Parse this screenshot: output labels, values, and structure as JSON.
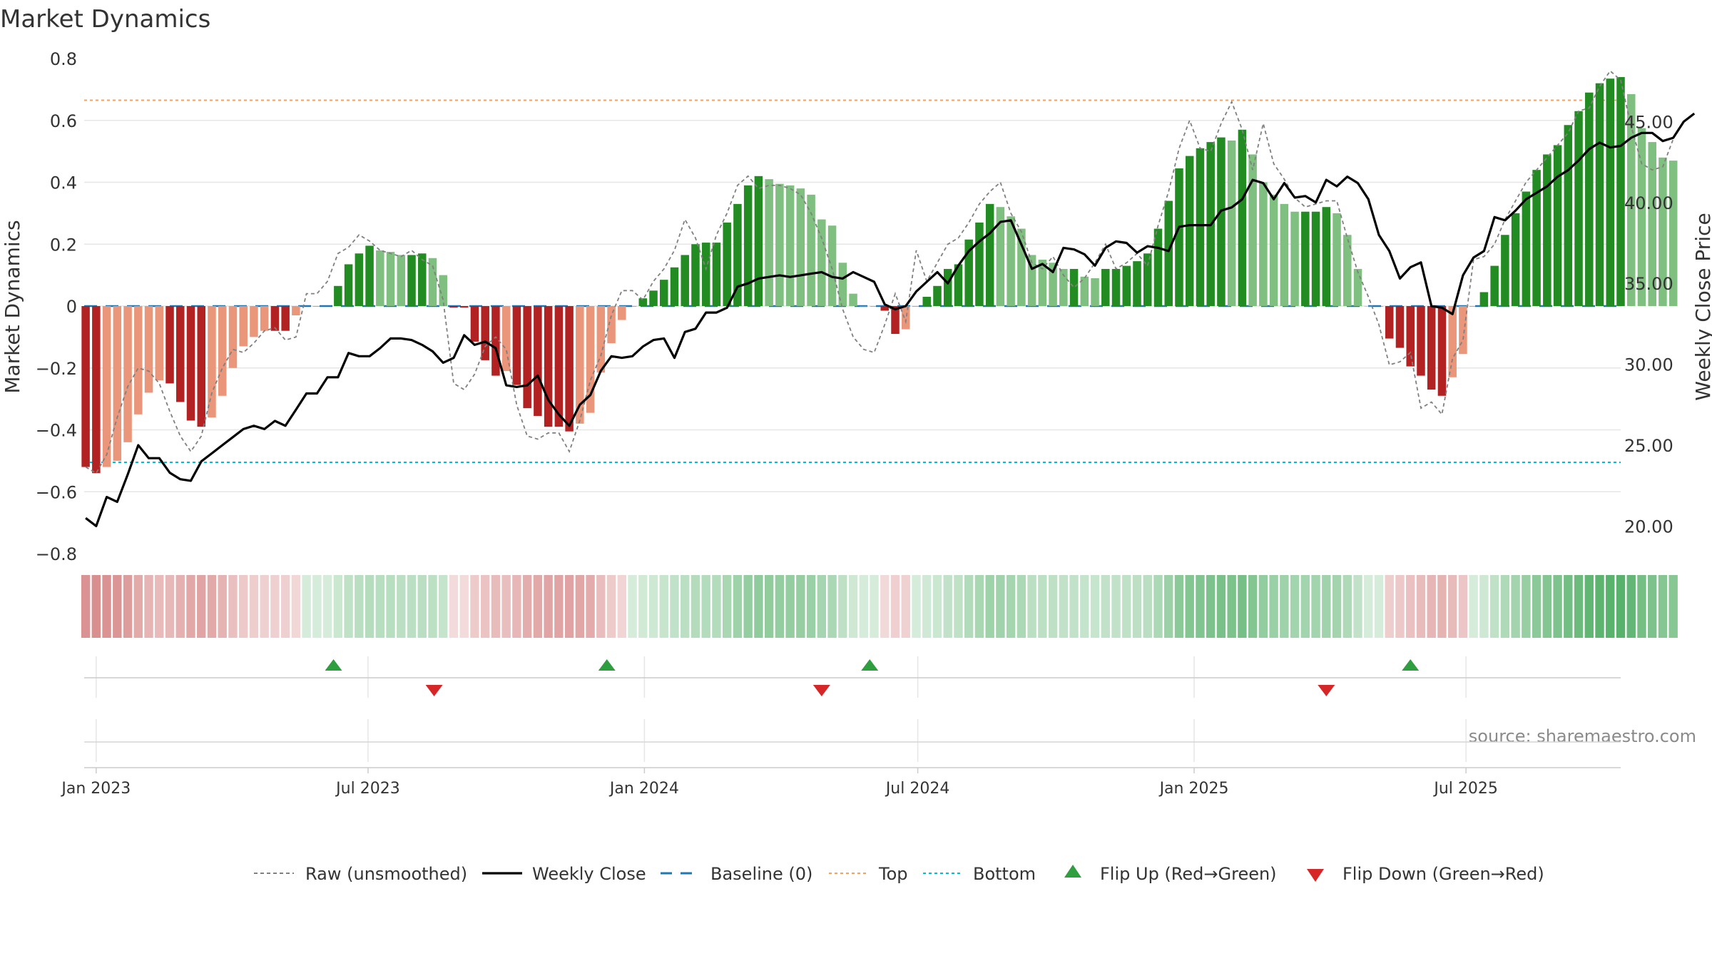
{
  "chart_data": {
    "type": "bar",
    "title": "Market Dynamics",
    "ylabel": "Market Dynamics",
    "y2label": "Weekly Close Price",
    "ylim": [
      -0.8,
      0.8
    ],
    "y2lim": [
      18.3,
      48.9
    ],
    "yticks": [
      -0.8,
      -0.6,
      -0.4,
      -0.2,
      0,
      0.2,
      0.4,
      0.6,
      0.8
    ],
    "yticklabels": [
      "−0.8",
      "−0.6",
      "−0.4",
      "−0.2",
      "0",
      "0.2",
      "0.4",
      "0.6",
      "0.8"
    ],
    "y2ticks": [
      20,
      25,
      30,
      35,
      40,
      45
    ],
    "y2ticklabels": [
      "20.00",
      "25.00",
      "30.00",
      "35.00",
      "40.00",
      "45.00"
    ],
    "xlim": [
      "2022-12-24",
      "2025-10-12"
    ],
    "xticks": [
      "2023-01-01",
      "2023-07-01",
      "2024-01-01",
      "2024-07-01",
      "2025-01-01",
      "2025-07-01"
    ],
    "xticklabels": [
      "Jan 2023",
      "Jul 2023",
      "Jan 2024",
      "Jul 2024",
      "Jan 2025",
      "Jul 2025"
    ],
    "start_date": "2022-12-25",
    "step_days": 7,
    "top_level": 0.665,
    "bottom_level": -0.505,
    "baseline_level": 0,
    "bar_values": [
      -0.52,
      -0.54,
      -0.52,
      -0.5,
      -0.44,
      -0.35,
      -0.28,
      -0.24,
      -0.25,
      -0.31,
      -0.37,
      -0.39,
      -0.36,
      -0.29,
      -0.2,
      -0.13,
      -0.1,
      -0.08,
      -0.08,
      -0.08,
      -0.03,
      0,
      0,
      0,
      0.065,
      0.135,
      0.17,
      0.195,
      0.18,
      0.175,
      0.165,
      0.165,
      0.17,
      0.155,
      0.1,
      -0.005,
      -0.005,
      -0.115,
      -0.175,
      -0.225,
      -0.21,
      -0.255,
      -0.33,
      -0.355,
      -0.39,
      -0.39,
      -0.405,
      -0.38,
      -0.345,
      -0.215,
      -0.12,
      -0.045,
      0,
      0.025,
      0.05,
      0.085,
      0.125,
      0.165,
      0.2,
      0.205,
      0.205,
      0.27,
      0.33,
      0.39,
      0.42,
      0.41,
      0.395,
      0.39,
      0.38,
      0.36,
      0.28,
      0.26,
      0.14,
      0.04,
      0,
      0,
      -0.015,
      -0.09,
      -0.075,
      0,
      0.03,
      0.065,
      0.12,
      0.135,
      0.215,
      0.27,
      0.33,
      0.32,
      0.29,
      0.25,
      0.165,
      0.15,
      0.14,
      0.12,
      0.12,
      0.095,
      0.09,
      0.12,
      0.12,
      0.13,
      0.145,
      0.17,
      0.25,
      0.34,
      0.445,
      0.485,
      0.51,
      0.53,
      0.545,
      0.535,
      0.57,
      0.49,
      0.4,
      0.36,
      0.33,
      0.305,
      0.305,
      0.305,
      0.32,
      0.3,
      0.23,
      0.12,
      0,
      0,
      -0.105,
      -0.135,
      -0.195,
      -0.225,
      -0.27,
      -0.29,
      -0.23,
      -0.155,
      0,
      0.045,
      0.13,
      0.23,
      0.3,
      0.37,
      0.44,
      0.49,
      0.52,
      0.585,
      0.63,
      0.69,
      0.72,
      0.735,
      0.74,
      0.685,
      0.575,
      0.53,
      0.48,
      0.47
    ],
    "raw_values": [
      -0.52,
      -0.54,
      -0.48,
      -0.36,
      -0.26,
      -0.2,
      -0.21,
      -0.25,
      -0.34,
      -0.42,
      -0.47,
      -0.42,
      -0.28,
      -0.2,
      -0.14,
      -0.15,
      -0.12,
      -0.08,
      -0.07,
      -0.11,
      -0.1,
      0.04,
      0.04,
      0.08,
      0.17,
      0.19,
      0.23,
      0.21,
      0.18,
      0.17,
      0.16,
      0.18,
      0.15,
      0.13,
      0.02,
      -0.25,
      -0.27,
      -0.22,
      -0.13,
      -0.1,
      -0.14,
      -0.32,
      -0.42,
      -0.43,
      -0.41,
      -0.41,
      -0.47,
      -0.37,
      -0.24,
      -0.16,
      -0.03,
      0.05,
      0.05,
      0.02,
      0.08,
      0.12,
      0.18,
      0.28,
      0.22,
      0.12,
      0.23,
      0.3,
      0.39,
      0.42,
      0.38,
      0.39,
      0.39,
      0.38,
      0.36,
      0.3,
      0.22,
      0.12,
      -0.01,
      -0.1,
      -0.14,
      -0.15,
      -0.06,
      0.04,
      -0.05,
      0.18,
      0.08,
      0.14,
      0.2,
      0.22,
      0.27,
      0.33,
      0.37,
      0.4,
      0.3,
      0.24,
      0.14,
      0.12,
      0.16,
      0.1,
      0.06,
      0.09,
      0.14,
      0.2,
      0.12,
      0.14,
      0.17,
      0.13,
      0.26,
      0.37,
      0.51,
      0.6,
      0.51,
      0.5,
      0.59,
      0.66,
      0.57,
      0.44,
      0.59,
      0.46,
      0.41,
      0.35,
      0.32,
      0.33,
      0.34,
      0.34,
      0.22,
      0.11,
      0.03,
      -0.06,
      -0.19,
      -0.18,
      -0.15,
      -0.33,
      -0.31,
      -0.35,
      -0.17,
      -0.11,
      0.15,
      0.16,
      0.2,
      0.28,
      0.34,
      0.4,
      0.44,
      0.48,
      0.52,
      0.56,
      0.63,
      0.64,
      0.71,
      0.76,
      0.73,
      0.58,
      0.46,
      0.44,
      0.45,
      0.54
    ],
    "close_values": [
      20.5,
      20.0,
      21.8,
      21.5,
      23.2,
      25.0,
      24.2,
      24.2,
      23.3,
      22.9,
      22.8,
      24.0,
      24.5,
      25.0,
      25.5,
      26.0,
      26.2,
      26.0,
      26.5,
      26.2,
      27.2,
      28.2,
      28.2,
      29.2,
      29.2,
      30.7,
      30.5,
      30.5,
      31.0,
      31.6,
      31.6,
      31.5,
      31.2,
      30.8,
      30.1,
      30.4,
      31.8,
      31.2,
      31.4,
      31.0,
      28.7,
      28.6,
      28.7,
      29.3,
      27.8,
      26.9,
      26.2,
      27.5,
      28.1,
      29.6,
      30.5,
      30.4,
      30.5,
      31.1,
      31.5,
      31.6,
      30.4,
      32.0,
      32.2,
      33.2,
      33.2,
      33.5,
      34.8,
      35.0,
      35.3,
      35.4,
      35.5,
      35.4,
      35.5,
      35.6,
      35.7,
      35.4,
      35.3,
      35.7,
      35.4,
      35.1,
      33.7,
      33.4,
      33.6,
      34.5,
      35.1,
      35.7,
      35.0,
      36.1,
      37.0,
      37.6,
      38.1,
      38.8,
      38.9,
      37.4,
      35.9,
      36.2,
      35.7,
      37.2,
      37.1,
      36.8,
      36.1,
      37.2,
      37.6,
      37.5,
      36.9,
      37.3,
      37.2,
      37.0,
      38.5,
      38.6,
      38.6,
      38.6,
      39.5,
      39.7,
      40.2,
      41.4,
      41.2,
      40.2,
      41.2,
      40.3,
      40.4,
      40.0,
      41.4,
      41.0,
      41.6,
      41.2,
      40.2,
      38.0,
      37.0,
      35.3,
      36.0,
      36.3,
      33.6,
      33.5,
      33.1,
      35.5,
      36.6,
      37.0,
      39.1,
      38.9,
      39.5,
      40.2,
      40.6,
      41.0,
      41.6,
      42.0,
      42.6,
      43.3,
      43.7,
      43.4,
      43.5,
      44.0,
      44.3,
      44.3,
      43.8,
      44.0,
      45.0,
      45.5
    ],
    "flip_up_dates": [
      "2023-06-08",
      "2023-12-07",
      "2024-05-30",
      "2025-05-25"
    ],
    "flip_down_dates": [
      "2023-08-14",
      "2024-04-28",
      "2025-03-30"
    ],
    "legend_placement": "bottom-center",
    "legend": [
      {
        "label": "Raw (unsmoothed)",
        "style": "raw"
      },
      {
        "label": "Weekly Close",
        "style": "close"
      },
      {
        "label": "Baseline (0)",
        "style": "baseline"
      },
      {
        "label": "Top",
        "style": "top"
      },
      {
        "label": "Bottom",
        "style": "bottom"
      },
      {
        "label": "Flip Up (Red→Green)",
        "style": "flip-up"
      },
      {
        "label": "Flip Down (Green→Red)",
        "style": "flip-down"
      }
    ],
    "source_text": "source: sharemaestro.com",
    "colors": {
      "strong_red": "#b22222",
      "light_red": "#e9967a",
      "strong_green": "#228b22",
      "light_green": "#7fbf7f",
      "raw": "#808080",
      "close": "#000000",
      "baseline": "#1f77b4",
      "top": "#f4a261",
      "bottom": "#00bcd4",
      "flip_up": "#2e9e3e",
      "flip_down": "#d62728",
      "grid": "#e6e6e6"
    }
  }
}
